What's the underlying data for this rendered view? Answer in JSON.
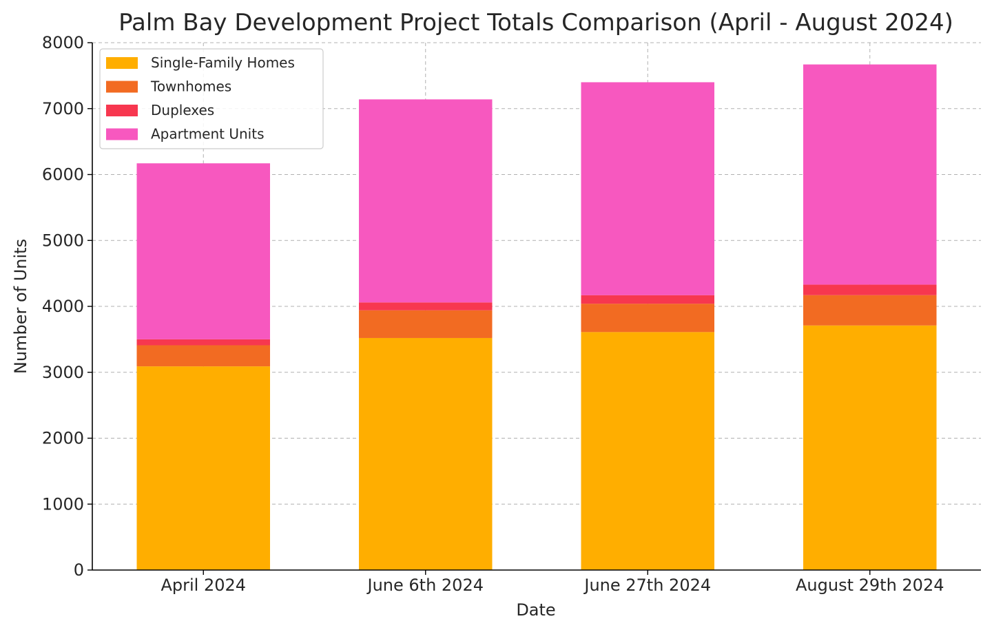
{
  "chart_data": {
    "type": "bar",
    "stacked": true,
    "title": "Palm Bay Development Project Totals Comparison (April - August 2024)",
    "xlabel": "Date",
    "ylabel": "Number of Units",
    "ylim": [
      0,
      8000
    ],
    "yticks": [
      "0",
      "1000",
      "2000",
      "3000",
      "4000",
      "5000",
      "6000",
      "7000",
      "8000"
    ],
    "grid": true,
    "legend_position": "top-left",
    "categories": [
      "April 2024",
      "June 6th 2024",
      "June 27th 2024",
      "August 29th 2024"
    ],
    "series": [
      {
        "name": "Single-Family Homes",
        "color": "#FFAE00",
        "values": [
          3090,
          3520,
          3610,
          3710
        ]
      },
      {
        "name": "Townhomes",
        "color": "#F26B22",
        "values": [
          320,
          420,
          430,
          460
        ]
      },
      {
        "name": "Duplexes",
        "color": "#F7374F",
        "values": [
          90,
          120,
          130,
          160
        ]
      },
      {
        "name": "Apartment Units",
        "color": "#F758BF",
        "values": [
          2670,
          3080,
          3230,
          3340
        ]
      }
    ]
  }
}
